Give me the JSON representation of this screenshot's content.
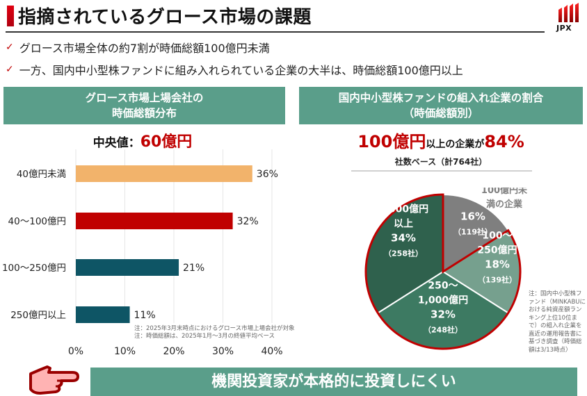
{
  "header": {
    "title": "指摘されているグロース市場の課題",
    "logo_text": "JPX",
    "accent_color": "#c00000"
  },
  "bullets": [
    {
      "icon": "checkmark-icon",
      "text": "グロース市場全体の約7割が時価総額100億円未満"
    },
    {
      "icon": "checkmark-icon",
      "text": "一方、国内中小型株ファンドに組み入れられている企業の大半は、時価総額100億円以上"
    }
  ],
  "left_panel": {
    "heading_line1": "グロース市場上場会社の",
    "heading_line2": "時価総額分布",
    "median_label": "中央値：",
    "median_value": "60億円",
    "notes": [
      "注：2025年3月末時点におけるグロース市場上場会社が対象",
      "注：時価総額は、2025年1月～3月の終値平均ベース"
    ]
  },
  "right_panel": {
    "heading_line1": "国内中小型株ファンドの組入れ企業の割合",
    "heading_line2": "（時価総額別）",
    "headline_value1": "100億円",
    "headline_text": "以上の企業が",
    "headline_value2": "84%",
    "basis": "社数ベース（計764社）",
    "outside_label_line1": "100億円未",
    "outside_label_line2": "満の企業",
    "note": "注：国内中小型株ファンド（MINKABUにおける純資産額ランキング上位10位まで）の組入れ企業を直近の運用報告書に基づき調査（時価総額は3/13時点）"
  },
  "chart_data": [
    {
      "type": "bar",
      "orientation": "horizontal",
      "title": "グロース市場上場会社の時価総額分布",
      "categories": [
        "40億円未満",
        "40～100億円",
        "100～250億円",
        "250億円以上"
      ],
      "values": [
        36,
        32,
        21,
        11
      ],
      "value_labels": [
        "36%",
        "32%",
        "21%",
        "11%"
      ],
      "colors": [
        "#f2b36b",
        "#c00000",
        "#0e5565",
        "#0e5565"
      ],
      "xlim": [
        0,
        40
      ],
      "xticks": [
        "0%",
        "10%",
        "20%",
        "30%",
        "40%"
      ],
      "xtick_values": [
        0,
        10,
        20,
        30,
        40
      ],
      "grid": true,
      "unit": "%"
    },
    {
      "type": "pie",
      "title": "国内中小型株ファンドの組入れ企業の割合（時価総額別）",
      "total": 764,
      "slices": [
        {
          "name": "100億円未満の企業",
          "label_lines": [],
          "value": 16,
          "pct": "16%",
          "count": "（119社）",
          "color": "#7f7f7f"
        },
        {
          "name": "100～250億円",
          "label_lines": [
            "100～",
            "250億円"
          ],
          "value": 18,
          "pct": "18%",
          "count": "（139社）",
          "color": "#76a08e"
        },
        {
          "name": "250～1,000億円",
          "label_lines": [
            "250～",
            "1,000億円"
          ],
          "value": 32,
          "pct": "32%",
          "count": "（248社）",
          "color": "#3d7a62"
        },
        {
          "name": "1,000億円以上",
          "label_lines": [
            "1,000億円",
            "以上"
          ],
          "value": 34,
          "pct": "34%",
          "count": "（258社）",
          "color": "#2f614d"
        }
      ],
      "highlight_outline_color": "#c00000",
      "highlight_note": "100億円以上 (84%) outlined in red"
    }
  ],
  "callout": {
    "icon": "pointing-hand-icon",
    "text": "機関投資家が本格的に投資しにくい"
  }
}
